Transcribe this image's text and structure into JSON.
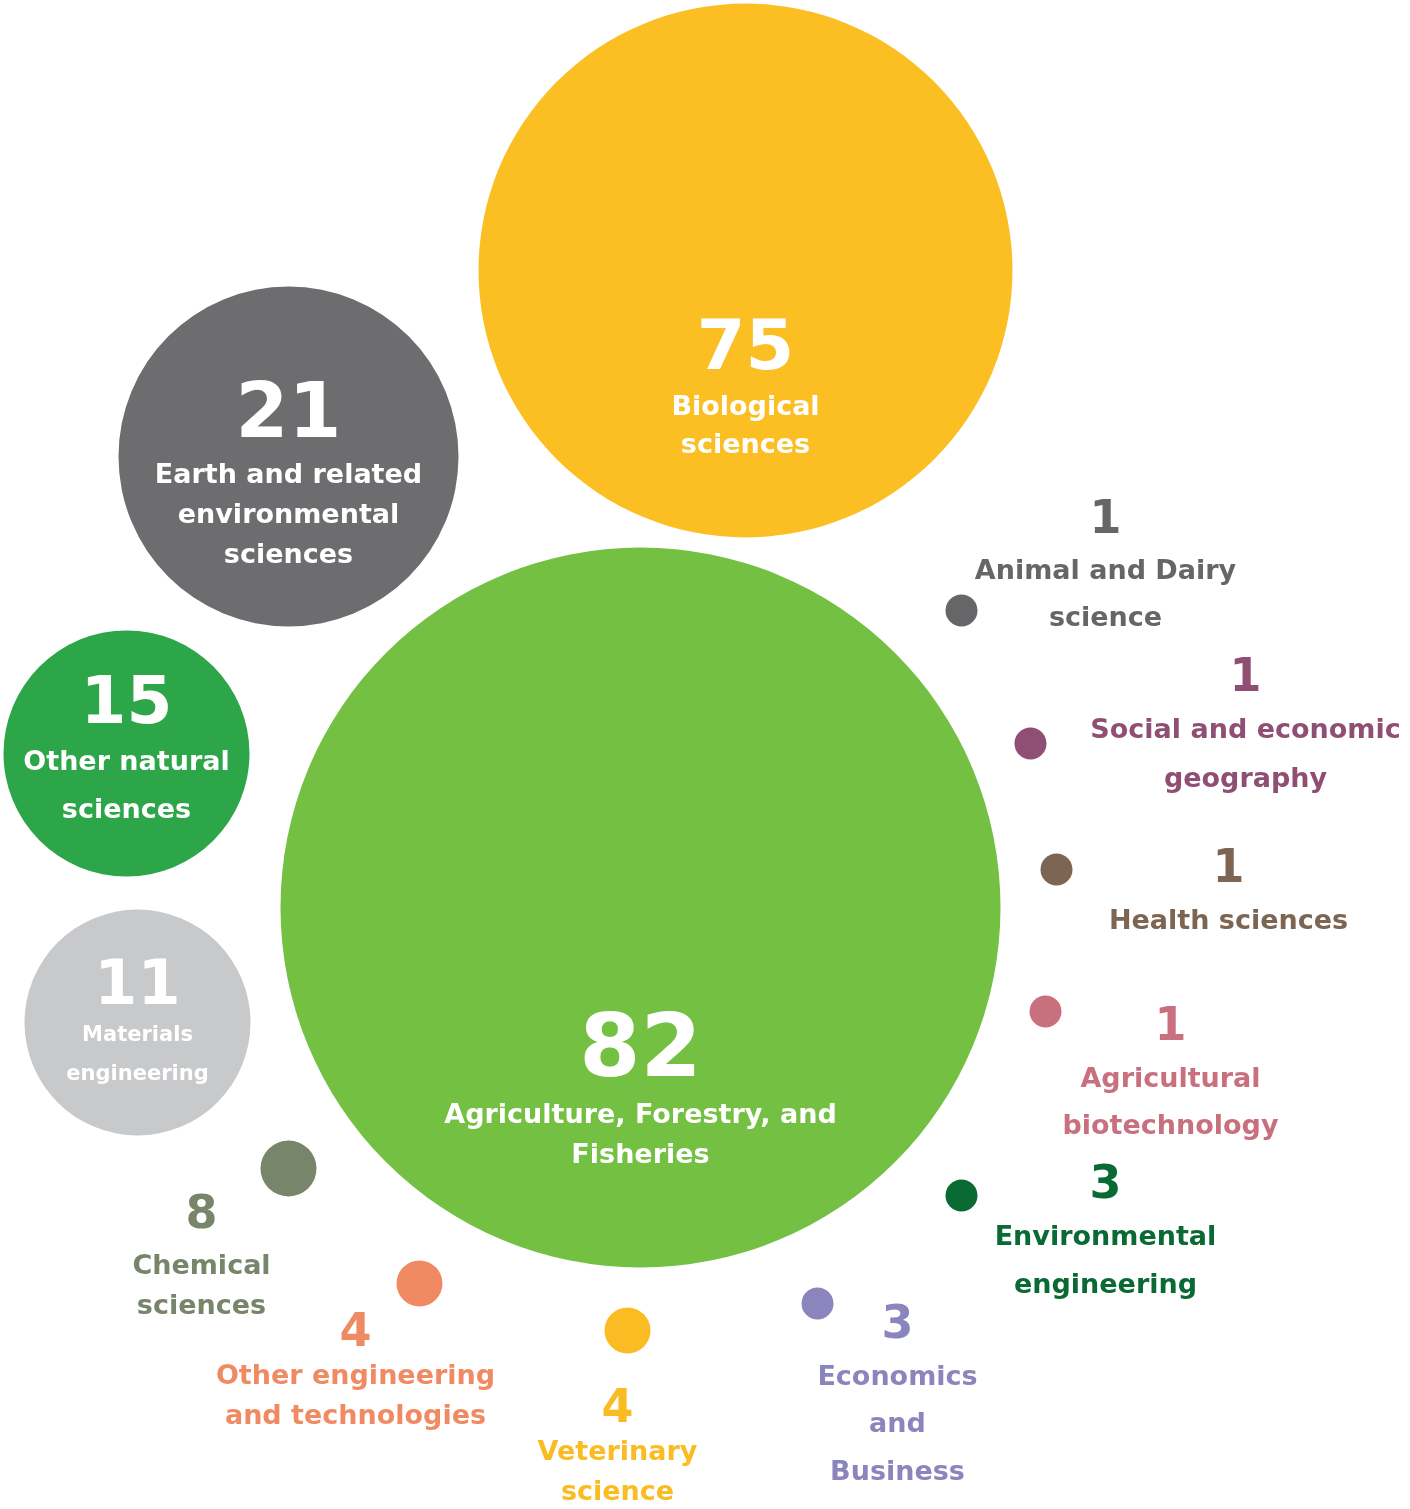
{
  "chart_data": {
    "type": "other",
    "data_labels": true,
    "categories": [
      "Agriculture, Forestry, and Fisheries",
      "Biological sciences",
      "Earth and related environmental sciences",
      "Other natural sciences",
      "Materials engineering",
      "Chemical sciences",
      "Other engineering and technologies",
      "Veterinary science",
      "Economics and Business",
      "Environmental engineering",
      "Agricultural biotechnology",
      "Health sciences",
      "Social and economic geography",
      "Animal and Dairy science"
    ],
    "values": [
      82,
      75,
      21,
      15,
      11,
      8,
      4,
      4,
      3,
      3,
      1,
      1,
      1,
      1
    ],
    "colors": [
      "#74c043",
      "#fbbf24",
      "#6d6d6f",
      "#2da64a",
      "#c8c9cb",
      "#77856a",
      "#f08a63",
      "#fbbb22",
      "#8a86bd",
      "#0a6a34",
      "#c9707f",
      "#7d6553",
      "#8f4f74",
      "#666668"
    ]
  }
}
